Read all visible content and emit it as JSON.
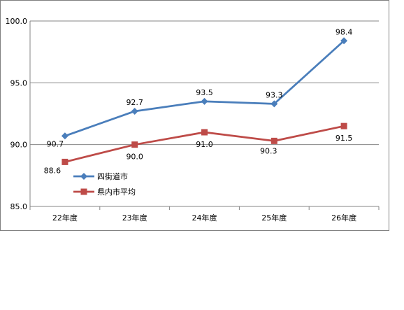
{
  "chart_data": {
    "type": "line",
    "categories": [
      "22年度",
      "23年度",
      "24年度",
      "25年度",
      "26年度"
    ],
    "ylim": [
      85.0,
      100.0
    ],
    "yticks": [
      "85.0",
      "90.0",
      "95.0",
      "100.0"
    ],
    "ytick_values": [
      85.0,
      90.0,
      95.0,
      100.0
    ],
    "grid": true,
    "legend_position": "lower-left inside plot",
    "series": [
      {
        "name": "四街道市",
        "values": [
          90.7,
          92.7,
          93.5,
          93.3,
          98.4
        ],
        "labels": [
          "90.7",
          "92.7",
          "93.5",
          "93.3",
          "98.4"
        ],
        "color": "#4a7ebb",
        "marker": "diamond"
      },
      {
        "name": "県内市平均",
        "values": [
          88.6,
          90.0,
          91.0,
          90.3,
          91.5
        ],
        "labels": [
          "88.6",
          "90.0",
          "91.0",
          "90.3",
          "91.5"
        ],
        "color": "#be4b48",
        "marker": "square"
      }
    ]
  }
}
